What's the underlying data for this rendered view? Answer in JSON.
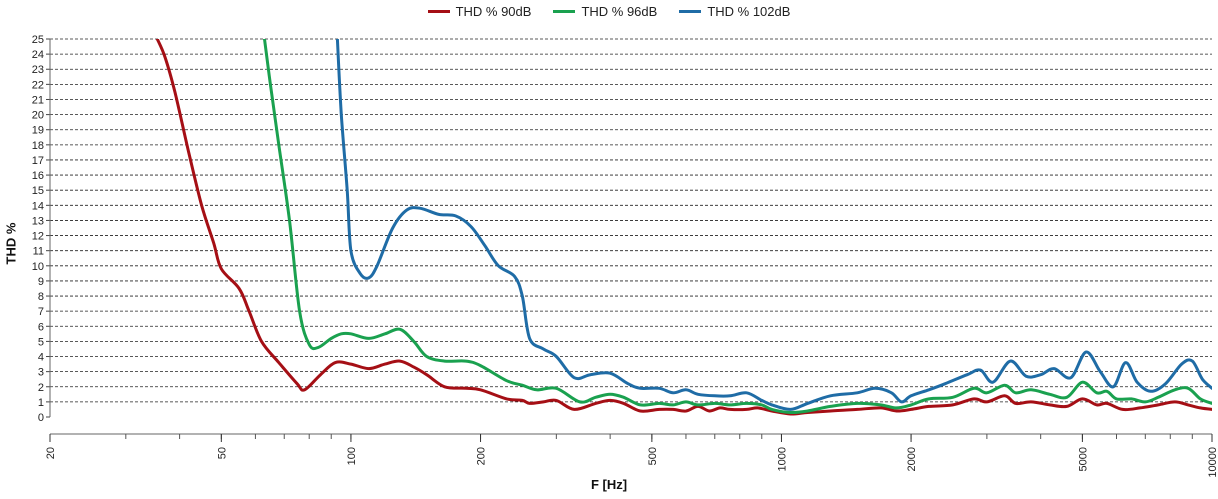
{
  "chart_data": {
    "type": "line",
    "xlabel": "F [Hz]",
    "ylabel": "THD %",
    "xscale": "log",
    "xlim": [
      20,
      10000
    ],
    "ylim": [
      0,
      25
    ],
    "x_ticks": [
      20,
      50,
      100,
      200,
      500,
      1000,
      2000,
      5000,
      10000
    ],
    "y_ticks": [
      0,
      1,
      2,
      3,
      4,
      5,
      6,
      7,
      8,
      9,
      10,
      11,
      12,
      13,
      14,
      15,
      16,
      17,
      18,
      19,
      20,
      21,
      22,
      23,
      24,
      25
    ],
    "grid": "horizontal dashed",
    "legend_position": "top-center",
    "series": [
      {
        "name": "THD % 90dB",
        "color": "#a50f15",
        "points": [
          [
            35.5,
            25
          ],
          [
            37,
            23.8
          ],
          [
            39,
            21.5
          ],
          [
            42,
            17.5
          ],
          [
            45,
            14
          ],
          [
            48,
            11.5
          ],
          [
            50,
            9.8
          ],
          [
            55,
            8.5
          ],
          [
            58,
            7
          ],
          [
            62,
            5
          ],
          [
            68,
            3.6
          ],
          [
            75,
            2.2
          ],
          [
            78,
            1.8
          ],
          [
            85,
            2.8
          ],
          [
            92,
            3.6
          ],
          [
            100,
            3.5
          ],
          [
            110,
            3.2
          ],
          [
            120,
            3.5
          ],
          [
            130,
            3.7
          ],
          [
            140,
            3.3
          ],
          [
            150,
            2.8
          ],
          [
            165,
            2
          ],
          [
            185,
            1.9
          ],
          [
            200,
            1.8
          ],
          [
            230,
            1.2
          ],
          [
            250,
            1.1
          ],
          [
            260,
            0.9
          ],
          [
            280,
            1
          ],
          [
            300,
            1.1
          ],
          [
            330,
            0.5
          ],
          [
            370,
            0.9
          ],
          [
            400,
            1.1
          ],
          [
            430,
            0.9
          ],
          [
            470,
            0.4
          ],
          [
            520,
            0.5
          ],
          [
            560,
            0.5
          ],
          [
            600,
            0.4
          ],
          [
            640,
            0.7
          ],
          [
            680,
            0.4
          ],
          [
            720,
            0.6
          ],
          [
            760,
            0.5
          ],
          [
            830,
            0.5
          ],
          [
            880,
            0.6
          ],
          [
            950,
            0.4
          ],
          [
            1050,
            0.2
          ],
          [
            1150,
            0.3
          ],
          [
            1300,
            0.4
          ],
          [
            1500,
            0.5
          ],
          [
            1700,
            0.6
          ],
          [
            1850,
            0.4
          ],
          [
            2000,
            0.5
          ],
          [
            2200,
            0.7
          ],
          [
            2500,
            0.8
          ],
          [
            2800,
            1.2
          ],
          [
            3000,
            1
          ],
          [
            3300,
            1.4
          ],
          [
            3500,
            0.9
          ],
          [
            3800,
            1
          ],
          [
            4200,
            0.8
          ],
          [
            4600,
            0.7
          ],
          [
            5000,
            1.2
          ],
          [
            5400,
            0.8
          ],
          [
            5700,
            0.9
          ],
          [
            6200,
            0.5
          ],
          [
            6800,
            0.6
          ],
          [
            7500,
            0.8
          ],
          [
            8200,
            1
          ],
          [
            8800,
            0.8
          ],
          [
            9400,
            0.6
          ],
          [
            10000,
            0.5
          ]
        ]
      },
      {
        "name": "THD % 96dB",
        "color": "#1aa14f",
        "points": [
          [
            63,
            25
          ],
          [
            65,
            22
          ],
          [
            68,
            18
          ],
          [
            72,
            13
          ],
          [
            76,
            7
          ],
          [
            80,
            4.8
          ],
          [
            84,
            4.6
          ],
          [
            90,
            5.2
          ],
          [
            95,
            5.5
          ],
          [
            100,
            5.5
          ],
          [
            110,
            5.2
          ],
          [
            120,
            5.5
          ],
          [
            130,
            5.8
          ],
          [
            140,
            5
          ],
          [
            150,
            4
          ],
          [
            165,
            3.7
          ],
          [
            185,
            3.7
          ],
          [
            200,
            3.4
          ],
          [
            230,
            2.4
          ],
          [
            250,
            2.1
          ],
          [
            270,
            1.8
          ],
          [
            300,
            1.9
          ],
          [
            340,
            1
          ],
          [
            370,
            1.3
          ],
          [
            400,
            1.5
          ],
          [
            430,
            1.3
          ],
          [
            470,
            0.8
          ],
          [
            520,
            0.9
          ],
          [
            560,
            0.8
          ],
          [
            600,
            1
          ],
          [
            640,
            0.8
          ],
          [
            700,
            0.9
          ],
          [
            760,
            0.8
          ],
          [
            830,
            0.9
          ],
          [
            900,
            0.8
          ],
          [
            950,
            0.5
          ],
          [
            1050,
            0.3
          ],
          [
            1150,
            0.4
          ],
          [
            1300,
            0.7
          ],
          [
            1500,
            0.9
          ],
          [
            1700,
            0.8
          ],
          [
            1850,
            0.6
          ],
          [
            2000,
            0.8
          ],
          [
            2200,
            1.2
          ],
          [
            2500,
            1.3
          ],
          [
            2800,
            1.9
          ],
          [
            3000,
            1.6
          ],
          [
            3300,
            2.1
          ],
          [
            3500,
            1.6
          ],
          [
            3800,
            1.8
          ],
          [
            4200,
            1.5
          ],
          [
            4600,
            1.3
          ],
          [
            5000,
            2.3
          ],
          [
            5400,
            1.6
          ],
          [
            5700,
            1.7
          ],
          [
            6000,
            1.2
          ],
          [
            6500,
            1.2
          ],
          [
            7000,
            1
          ],
          [
            7500,
            1.3
          ],
          [
            8200,
            1.8
          ],
          [
            8800,
            1.9
          ],
          [
            9400,
            1.2
          ],
          [
            10000,
            0.9
          ]
        ]
      },
      {
        "name": "THD % 102dB",
        "color": "#1f6ca6",
        "points": [
          [
            93,
            25
          ],
          [
            95,
            20
          ],
          [
            98,
            15
          ],
          [
            100,
            11
          ],
          [
            105,
            9.5
          ],
          [
            110,
            9.2
          ],
          [
            115,
            10
          ],
          [
            125,
            12.5
          ],
          [
            135,
            13.7
          ],
          [
            145,
            13.8
          ],
          [
            160,
            13.4
          ],
          [
            175,
            13.3
          ],
          [
            190,
            12.6
          ],
          [
            205,
            11.3
          ],
          [
            220,
            10
          ],
          [
            240,
            9.3
          ],
          [
            250,
            8
          ],
          [
            260,
            5.2
          ],
          [
            280,
            4.5
          ],
          [
            300,
            4
          ],
          [
            330,
            2.6
          ],
          [
            360,
            2.8
          ],
          [
            400,
            2.9
          ],
          [
            440,
            2.2
          ],
          [
            470,
            1.9
          ],
          [
            520,
            1.9
          ],
          [
            560,
            1.6
          ],
          [
            600,
            1.8
          ],
          [
            640,
            1.5
          ],
          [
            700,
            1.4
          ],
          [
            760,
            1.4
          ],
          [
            830,
            1.6
          ],
          [
            900,
            1.1
          ],
          [
            950,
            0.8
          ],
          [
            1050,
            0.5
          ],
          [
            1150,
            0.9
          ],
          [
            1300,
            1.4
          ],
          [
            1500,
            1.6
          ],
          [
            1650,
            1.9
          ],
          [
            1800,
            1.6
          ],
          [
            1900,
            1
          ],
          [
            2000,
            1.4
          ],
          [
            2200,
            1.8
          ],
          [
            2400,
            2.2
          ],
          [
            2700,
            2.8
          ],
          [
            2900,
            3.1
          ],
          [
            3100,
            2.3
          ],
          [
            3400,
            3.7
          ],
          [
            3700,
            2.7
          ],
          [
            4000,
            2.8
          ],
          [
            4300,
            3.2
          ],
          [
            4700,
            2.6
          ],
          [
            5100,
            4.3
          ],
          [
            5500,
            3
          ],
          [
            5900,
            2
          ],
          [
            6300,
            3.6
          ],
          [
            6700,
            2.3
          ],
          [
            7200,
            1.7
          ],
          [
            7800,
            2.2
          ],
          [
            8500,
            3.5
          ],
          [
            9000,
            3.7
          ],
          [
            9500,
            2.5
          ],
          [
            10000,
            1.9
          ]
        ]
      }
    ]
  }
}
